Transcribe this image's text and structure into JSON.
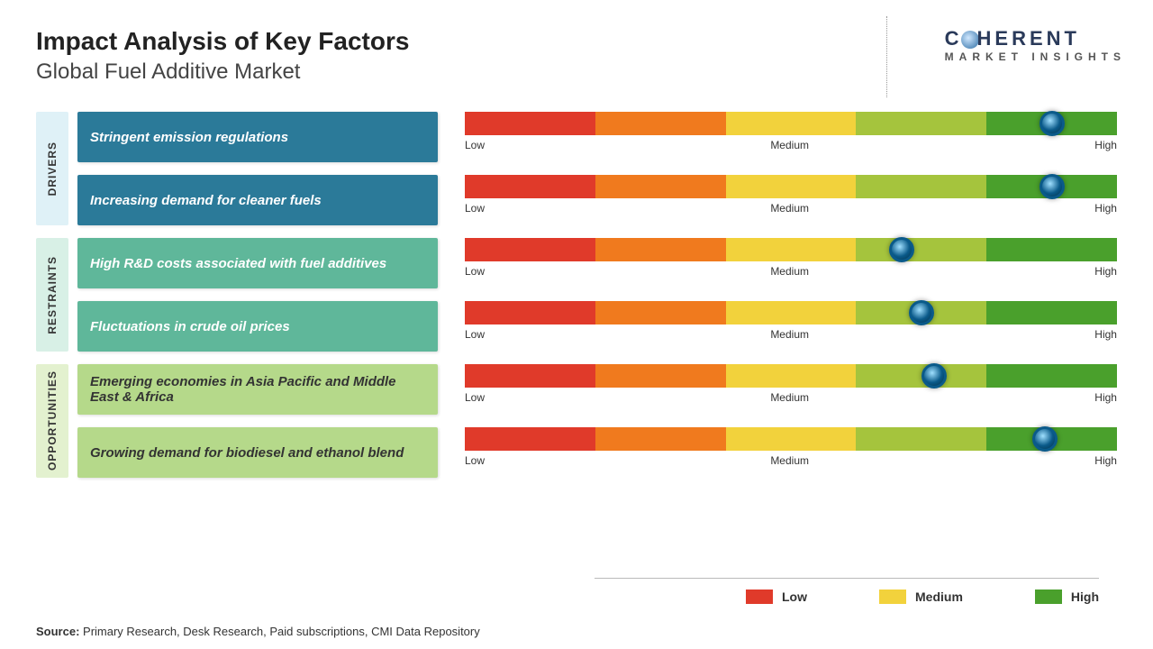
{
  "title": "Impact Analysis of Key Factors",
  "subtitle": "Global Fuel Additive Market",
  "brand": {
    "name": "COHERENT",
    "sub": "MARKET INSIGHTS"
  },
  "scale_labels": {
    "low": "Low",
    "medium": "Medium",
    "high": "High"
  },
  "gradient_colors": [
    "#e03a2a",
    "#f07a1e",
    "#f2d23c",
    "#a5c43d",
    "#4aa02c"
  ],
  "groups": [
    {
      "id": "drivers",
      "label": "DRIVERS",
      "label_bg": "#dff1f7",
      "box_bg": "#2b7a99",
      "text_color": "#ffffff",
      "factors": [
        {
          "text": "Stringent emission regulations",
          "marker_pct": 90
        },
        {
          "text": "Increasing demand for cleaner fuels",
          "marker_pct": 90
        }
      ]
    },
    {
      "id": "restraints",
      "label": "RESTRAINTS",
      "label_bg": "#d8f0e6",
      "box_bg": "#5fb79a",
      "text_color": "#ffffff",
      "factors": [
        {
          "text": "High R&D costs associated with fuel additives",
          "marker_pct": 67
        },
        {
          "text": "Fluctuations in crude oil prices",
          "marker_pct": 70
        }
      ]
    },
    {
      "id": "opportunities",
      "label": "OPPORTUNITIES",
      "label_bg": "#e3f1cf",
      "box_bg": "#b5d98a",
      "text_color": "#333333",
      "factors": [
        {
          "text": "Emerging economies in Asia Pacific and Middle East & Africa",
          "marker_pct": 72
        },
        {
          "text": "Growing demand for biodiesel and ethanol blend",
          "marker_pct": 89
        }
      ]
    }
  ],
  "legend": [
    {
      "label": "Low",
      "color": "#e03a2a"
    },
    {
      "label": "Medium",
      "color": "#f2d23c"
    },
    {
      "label": "High",
      "color": "#4aa02c"
    }
  ],
  "source_label": "Source:",
  "source_text": "Primary Research, Desk Research, Paid subscriptions, CMI Data Repository"
}
